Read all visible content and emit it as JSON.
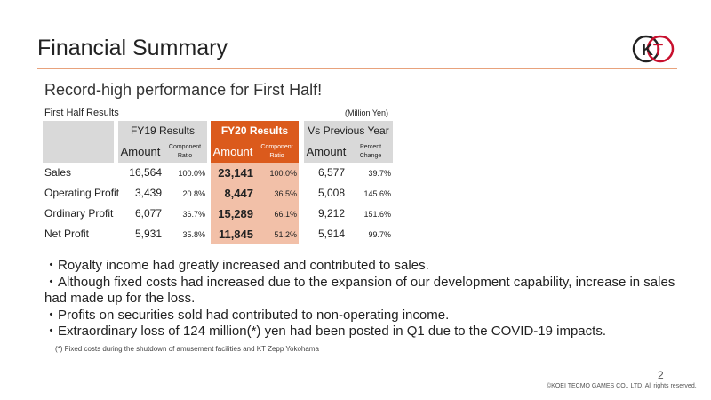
{
  "title": "Financial Summary",
  "subtitle": "Record-high performance for First Half!",
  "logo_text": "KT",
  "table": {
    "label": "First Half Results",
    "unit": "(Million Yen)",
    "groups": [
      "FY19 Results",
      "FY20 Results",
      "Vs Previous Year"
    ],
    "sub": {
      "amount": "Amount",
      "component": "Component Ratio",
      "percent": "Percent Change"
    },
    "rows": [
      {
        "label": "Sales",
        "fy19": "16,564",
        "fy19r": "100.0%",
        "fy20": "23,141",
        "fy20r": "100.0%",
        "vs": "6,577",
        "vsp": "39.7%"
      },
      {
        "label": "Operating Profit",
        "fy19": "3,439",
        "fy19r": "20.8%",
        "fy20": "8,447",
        "fy20r": "36.5%",
        "vs": "5,008",
        "vsp": "145.6%"
      },
      {
        "label": "Ordinary Profit",
        "fy19": "6,077",
        "fy19r": "36.7%",
        "fy20": "15,289",
        "fy20r": "66.1%",
        "vs": "9,212",
        "vsp": "151.6%"
      },
      {
        "label": "Net Profit",
        "fy19": "5,931",
        "fy19r": "35.8%",
        "fy20": "11,845",
        "fy20r": "51.2%",
        "vs": "5,914",
        "vsp": "99.7%"
      }
    ]
  },
  "bullets": [
    "・Royalty income had greatly increased and contributed to sales.",
    "・Although fixed costs had increased due to the expansion of our development capability, increase in sales had made up for the loss.",
    "・Profits on securities sold had contributed to non-operating income.",
    "・Extraordinary loss of 124 million(*) yen had been posted in Q1 due to the COVID-19 impacts."
  ],
  "footnote": "(*) Fixed costs during the shutdown of amusement facilities and KT Zepp Yokohama",
  "page_number": "2",
  "copyright": "©KOEI TECMO GAMES CO., LTD. All rights reserved."
}
